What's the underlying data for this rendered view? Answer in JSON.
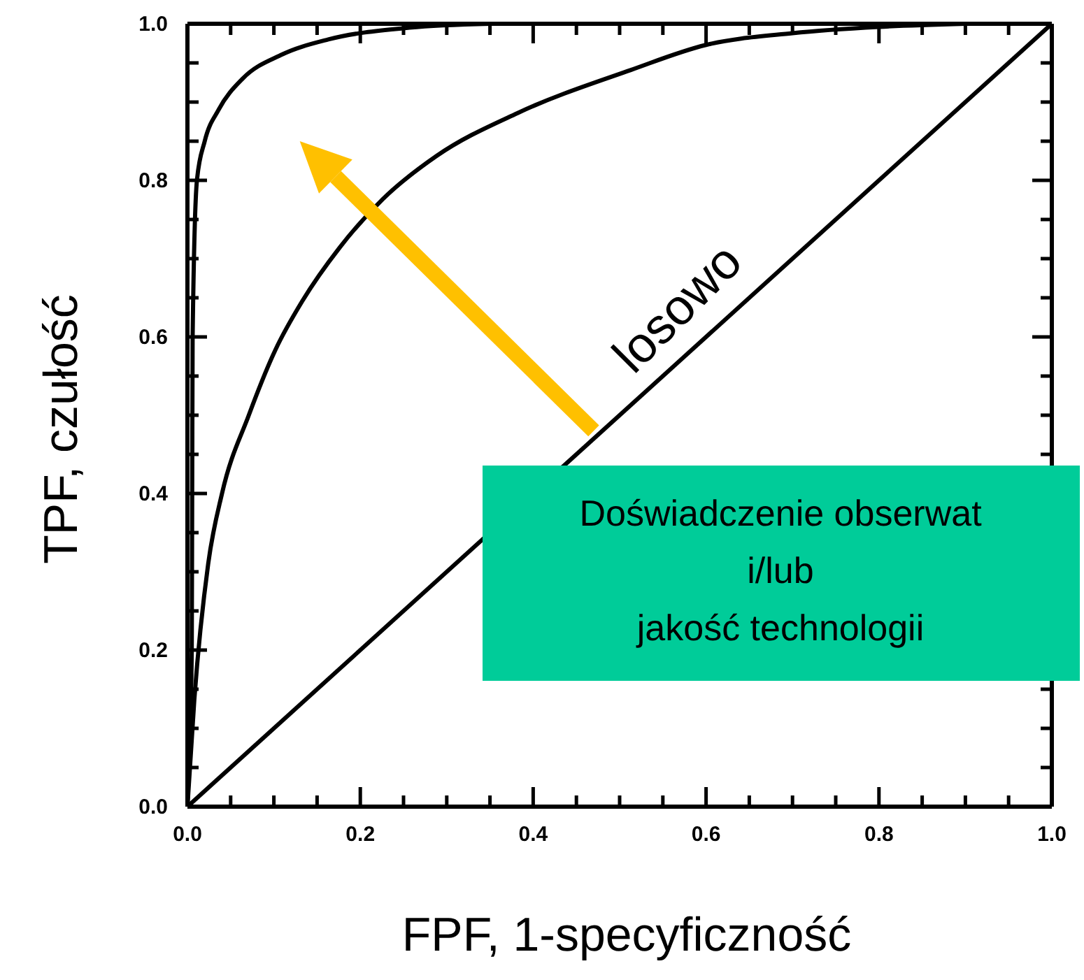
{
  "chart_data": {
    "type": "line",
    "xlabel": "FPF, 1-specyficzność",
    "ylabel": "TPF, czułość",
    "xlim": [
      0,
      1
    ],
    "ylim": [
      0,
      1
    ],
    "xticks": [
      {
        "value": 0,
        "label": "0.0"
      },
      {
        "value": 0.05,
        "label": null
      },
      {
        "value": 0.1,
        "label": null
      },
      {
        "value": 0.15,
        "label": null
      },
      {
        "value": 0.2,
        "label": "0.2"
      },
      {
        "value": 0.25,
        "label": null
      },
      {
        "value": 0.3,
        "label": null
      },
      {
        "value": 0.35,
        "label": null
      },
      {
        "value": 0.4,
        "label": "0.4"
      },
      {
        "value": 0.45,
        "label": null
      },
      {
        "value": 0.5,
        "label": null
      },
      {
        "value": 0.55,
        "label": null
      },
      {
        "value": 0.6,
        "label": "0.6"
      },
      {
        "value": 0.65,
        "label": null
      },
      {
        "value": 0.7,
        "label": null
      },
      {
        "value": 0.75,
        "label": null
      },
      {
        "value": 0.8,
        "label": "0.8"
      },
      {
        "value": 0.85,
        "label": null
      },
      {
        "value": 0.9,
        "label": null
      },
      {
        "value": 0.95,
        "label": null
      },
      {
        "value": 1,
        "label": "1.0"
      }
    ],
    "yticks": [
      {
        "value": 0,
        "label": "0.0"
      },
      {
        "value": 0.05,
        "label": null
      },
      {
        "value": 0.1,
        "label": null
      },
      {
        "value": 0.15,
        "label": null
      },
      {
        "value": 0.2,
        "label": "0.2"
      },
      {
        "value": 0.25,
        "label": null
      },
      {
        "value": 0.3,
        "label": null
      },
      {
        "value": 0.35,
        "label": null
      },
      {
        "value": 0.4,
        "label": "0.4"
      },
      {
        "value": 0.45,
        "label": null
      },
      {
        "value": 0.5,
        "label": null
      },
      {
        "value": 0.55,
        "label": null
      },
      {
        "value": 0.6,
        "label": "0.6"
      },
      {
        "value": 0.65,
        "label": null
      },
      {
        "value": 0.7,
        "label": null
      },
      {
        "value": 0.75,
        "label": null
      },
      {
        "value": 0.8,
        "label": "0.8"
      },
      {
        "value": 0.85,
        "label": null
      },
      {
        "value": 0.9,
        "label": null
      },
      {
        "value": 0.95,
        "label": null
      },
      {
        "value": 1,
        "label": "1.0"
      }
    ],
    "series": [
      {
        "color": "#000000",
        "x": [
          0,
          0.003,
          0.005,
          0.0055,
          0.006,
          0.011,
          0.02,
          0.036,
          0.064,
          0.108,
          0.163,
          0.257,
          0.35
        ],
        "values": [
          0,
          0.1,
          0.2,
          0.4,
          0.6,
          0.8,
          0.85,
          0.89,
          0.93,
          0.96,
          0.98,
          0.995,
          1
        ]
      },
      {
        "color": "#000000",
        "x": [
          0,
          0.008,
          0.024,
          0.04,
          0.071,
          0.102,
          0.133,
          0.176,
          0.226,
          0.288,
          0.382,
          0.513,
          0.6,
          0.7,
          0.8,
          0.9
        ],
        "values": [
          0,
          0.137,
          0.31,
          0.4,
          0.5,
          0.584,
          0.646,
          0.714,
          0.776,
          0.831,
          0.886,
          0.941,
          0.973,
          0.988,
          0.996,
          1
        ]
      },
      {
        "color": "#000000",
        "x": [
          0,
          1
        ],
        "values": [
          0,
          1
        ]
      }
    ],
    "annotations": [
      {
        "text": "losowo",
        "x": 0.6,
        "y": 0.6
      },
      "Doświadczenie obserwat\ni/lub\njakość technologii"
    ],
    "grid": false,
    "marker": "none",
    "line_style": "solid"
  }
}
